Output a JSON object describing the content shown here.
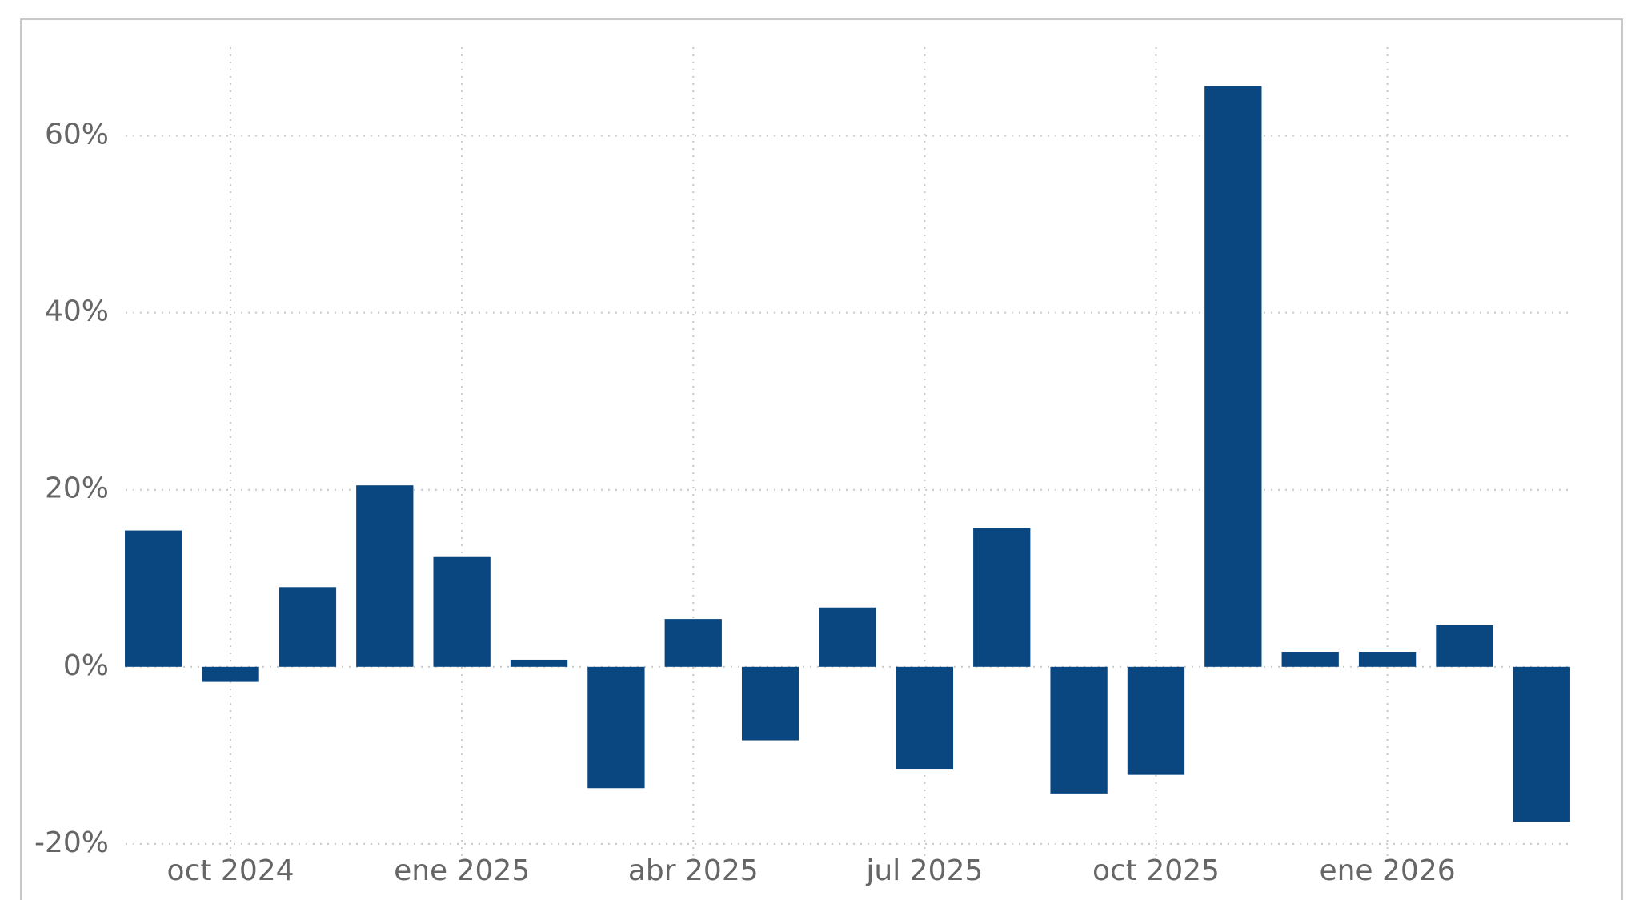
{
  "chart_data": {
    "type": "bar",
    "x": [
      "2024-09",
      "2024-10",
      "2024-11",
      "2024-12",
      "2025-01",
      "2025-02",
      "2025-03",
      "2025-04",
      "2025-05",
      "2025-06",
      "2025-07",
      "2025-08",
      "2025-09",
      "2025-10",
      "2025-11",
      "2025-12",
      "2026-01",
      "2026-02",
      "2026-03"
    ],
    "values": [
      15.4,
      -1.7,
      9.0,
      20.5,
      12.4,
      0.8,
      -13.7,
      5.4,
      -8.3,
      6.7,
      -11.6,
      15.7,
      -14.3,
      -12.2,
      65.6,
      1.7,
      1.7,
      4.7,
      -17.5
    ],
    "color": "#0a4780",
    "xlim": [
      "2024-09",
      "2026-03"
    ],
    "xticks": [
      {
        "value": "2024-10",
        "label": "oct 2024"
      },
      {
        "value": "2025-01",
        "label": "ene 2025"
      },
      {
        "value": "2025-04",
        "label": "abr 2025"
      },
      {
        "value": "2025-07",
        "label": "jul 2025"
      },
      {
        "value": "2025-10",
        "label": "oct 2025"
      },
      {
        "value": "2026-01",
        "label": "ene 2026"
      }
    ],
    "ylim": [
      -22,
      70
    ],
    "yticks": [
      {
        "value": -20,
        "label": "-20%"
      },
      {
        "value": 0,
        "label": "0%"
      },
      {
        "value": 20,
        "label": "20%"
      },
      {
        "value": 40,
        "label": "40%"
      },
      {
        "value": 60,
        "label": "60%"
      }
    ],
    "grid": true
  }
}
